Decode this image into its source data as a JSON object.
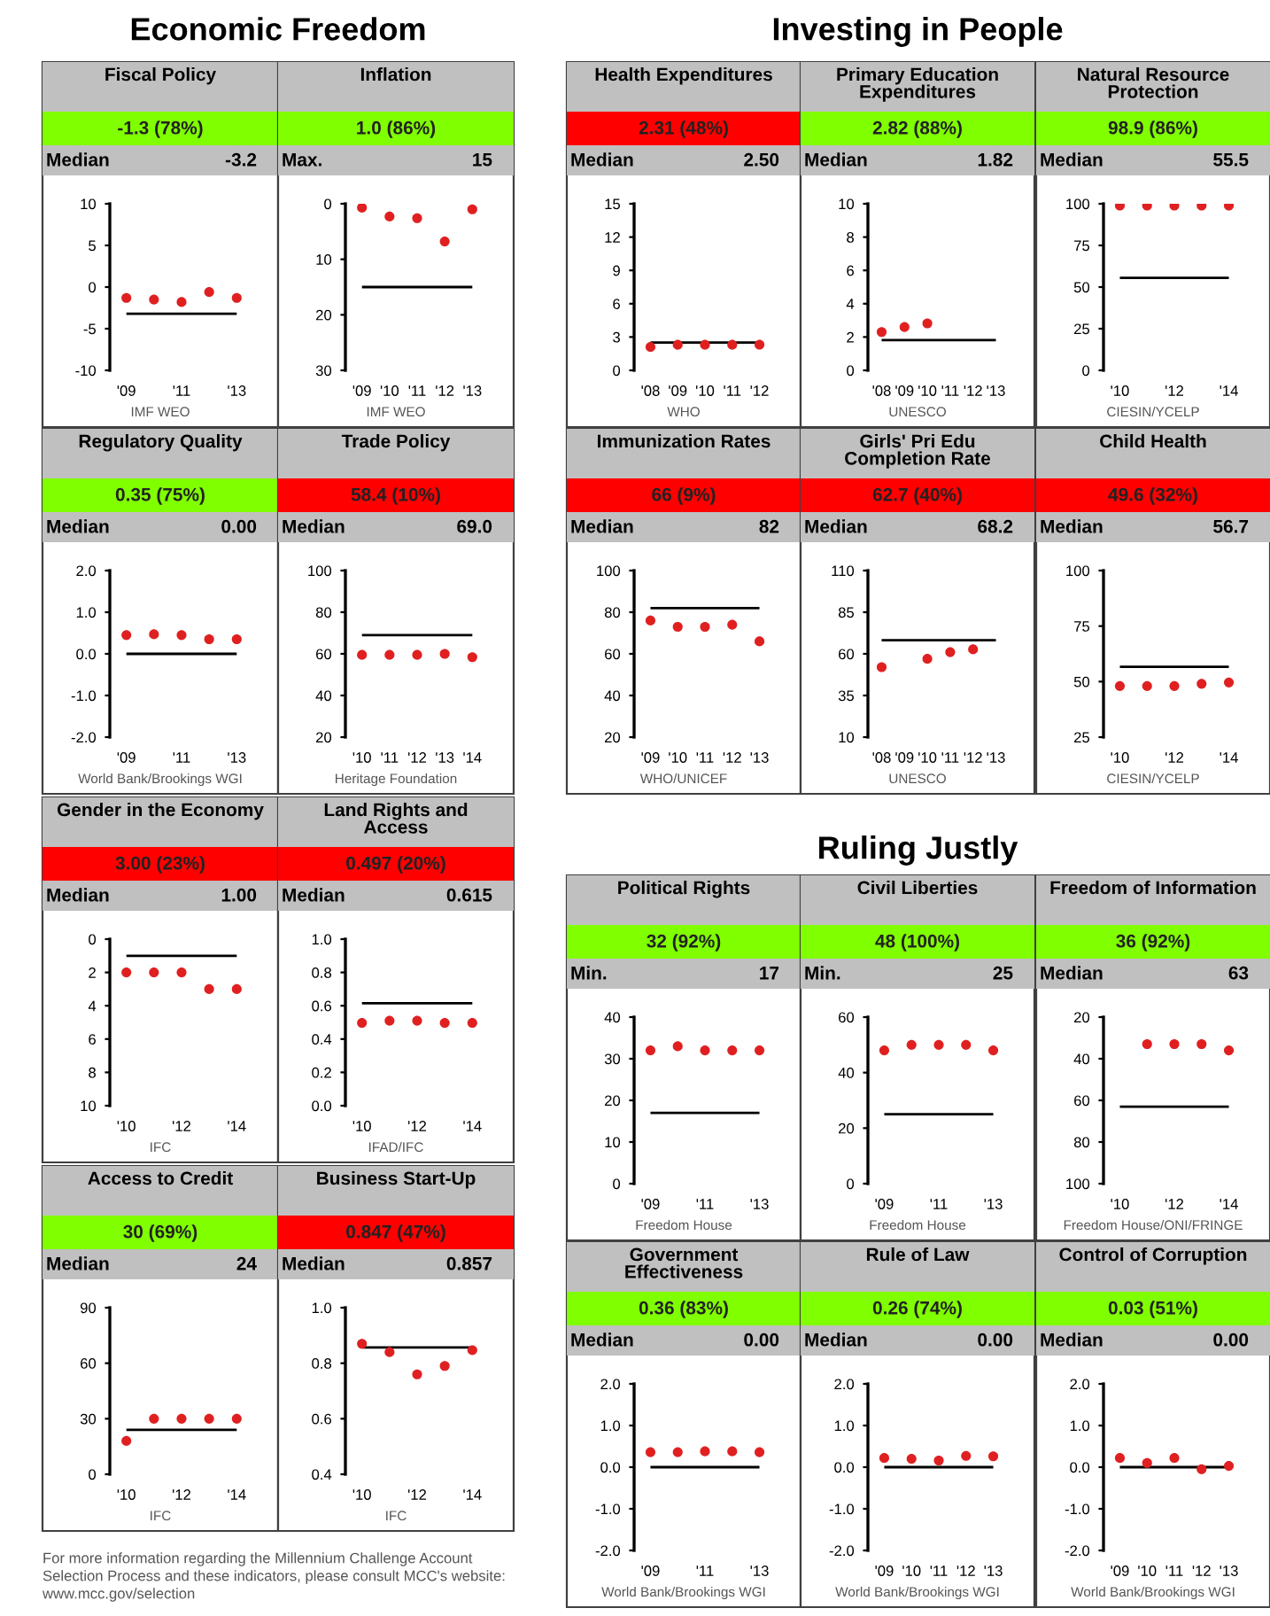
{
  "chart_data": [
    {
      "type": "other",
      "title": "Economic Freedom"
    },
    {
      "type": "scatter",
      "title": "Fiscal Policy",
      "subtitle": "-1.3 (78%)",
      "color": "#80ff00",
      "annotations": [
        "Median",
        "-3.2",
        "IMF WEO"
      ],
      "categories": [
        "'09",
        null,
        "'11",
        null,
        "'13"
      ],
      "marker": "circle",
      "series": [
        {
          "color": "#e02020",
          "values": [
            -1.3,
            -1.5,
            -1.8,
            -0.6,
            -1.3
          ]
        }
      ],
      "ylim": [
        -10,
        10
      ],
      "yticks": [
        -10,
        -5,
        0,
        5,
        10
      ],
      "ref_lines": [
        {
          "axis": "y",
          "value": -3.2,
          "color": "#000000"
        }
      ]
    },
    {
      "type": "scatter",
      "title": "Inflation",
      "subtitle": "1.0 (86%)",
      "color": "#80ff00",
      "annotations": [
        "Max.",
        "15",
        "IMF WEO"
      ],
      "categories": [
        "'09",
        "'10",
        "'11",
        "'12",
        "'13"
      ],
      "marker": "circle",
      "series": [
        {
          "color": "#e02020",
          "values": [
            0.7,
            2.3,
            2.6,
            6.8,
            1.0
          ]
        }
      ],
      "ylim": [
        30,
        0
      ],
      "yticks": [
        0,
        10,
        20,
        30
      ],
      "ref_lines": [
        {
          "axis": "y",
          "value": 15,
          "color": "#000000"
        }
      ]
    },
    {
      "type": "scatter",
      "title": "Regulatory Quality",
      "subtitle": "0.35 (75%)",
      "color": "#80ff00",
      "annotations": [
        "Median",
        "0.00",
        "World Bank/Brookings WGI"
      ],
      "categories": [
        "'09",
        null,
        "'11",
        null,
        "'13"
      ],
      "marker": "circle",
      "series": [
        {
          "color": "#e02020",
          "values": [
            0.45,
            0.47,
            0.45,
            0.35,
            0.35
          ]
        }
      ],
      "ylim": [
        -2,
        2
      ],
      "yticks": [
        {
          "value": -2,
          "label": "-2.0"
        },
        {
          "value": -1,
          "label": "-1.0"
        },
        {
          "value": 0,
          "label": "0.0"
        },
        {
          "value": 1,
          "label": "1.0"
        },
        {
          "value": 2,
          "label": "2.0"
        }
      ],
      "ref_lines": [
        {
          "axis": "y",
          "value": 0,
          "color": "#000000"
        }
      ]
    },
    {
      "type": "scatter",
      "title": "Trade Policy",
      "subtitle": "58.4 (10%)",
      "color": "#ff0000",
      "annotations": [
        "Median",
        "69.0",
        "Heritage Foundation"
      ],
      "categories": [
        "'10",
        "'11",
        "'12",
        "'13",
        "'14"
      ],
      "marker": "circle",
      "series": [
        {
          "color": "#e02020",
          "values": [
            59.5,
            59.5,
            59.5,
            60,
            58.4
          ]
        }
      ],
      "ylim": [
        20,
        100
      ],
      "yticks": [
        20,
        40,
        60,
        80,
        100
      ],
      "ref_lines": [
        {
          "axis": "y",
          "value": 69,
          "color": "#000000"
        }
      ]
    },
    {
      "type": "scatter",
      "title": "Gender in the Economy",
      "subtitle": "3.00 (23%)",
      "color": "#ff0000",
      "annotations": [
        "Median",
        "1.00",
        "IFC"
      ],
      "categories": [
        "'10",
        null,
        "'12",
        null,
        "'14"
      ],
      "marker": "circle",
      "series": [
        {
          "color": "#e02020",
          "values": [
            2,
            2,
            2,
            3,
            3
          ]
        }
      ],
      "ylim": [
        10,
        0
      ],
      "yticks": [
        0,
        2,
        4,
        6,
        8,
        10
      ],
      "ref_lines": [
        {
          "axis": "y",
          "value": 1,
          "color": "#000000"
        }
      ]
    },
    {
      "type": "scatter",
      "title": "Land Rights and\nAccess",
      "subtitle": "0.497 (20%)",
      "color": "#ff0000",
      "annotations": [
        "Median",
        "0.615",
        "IFAD/IFC"
      ],
      "categories": [
        "'10",
        null,
        "'12",
        null,
        "'14"
      ],
      "marker": "circle",
      "series": [
        {
          "color": "#e02020",
          "values": [
            0.497,
            0.51,
            0.51,
            0.497,
            0.497
          ]
        }
      ],
      "ylim": [
        0,
        1
      ],
      "yticks": [
        {
          "value": 0,
          "label": "0.0"
        },
        0.2,
        0.4,
        0.6,
        0.8,
        {
          "value": 1,
          "label": "1.0"
        }
      ],
      "ref_lines": [
        {
          "axis": "y",
          "value": 0.615,
          "color": "#000000"
        }
      ]
    },
    {
      "type": "scatter",
      "title": "Access to Credit",
      "subtitle": "30 (69%)",
      "color": "#80ff00",
      "annotations": [
        "Median",
        "24",
        "IFC"
      ],
      "categories": [
        "'10",
        null,
        "'12",
        null,
        "'14"
      ],
      "marker": "circle",
      "series": [
        {
          "color": "#e02020",
          "values": [
            18,
            30,
            30,
            30,
            30
          ]
        }
      ],
      "ylim": [
        0,
        90
      ],
      "yticks": [
        0,
        30,
        60,
        90
      ],
      "ref_lines": [
        {
          "axis": "y",
          "value": 24,
          "color": "#000000"
        }
      ]
    },
    {
      "type": "scatter",
      "title": "Business Start-Up",
      "subtitle": "0.847 (47%)",
      "color": "#ff0000",
      "annotations": [
        "Median",
        "0.857",
        "IFC"
      ],
      "categories": [
        "'10",
        null,
        "'12",
        null,
        "'14"
      ],
      "marker": "circle",
      "series": [
        {
          "color": "#e02020",
          "values": [
            0.87,
            0.84,
            0.76,
            0.79,
            0.847
          ]
        }
      ],
      "ylim": [
        0.4,
        1
      ],
      "yticks": [
        0.4,
        0.6,
        0.8,
        {
          "value": 1,
          "label": "1.0"
        }
      ],
      "ref_lines": [
        {
          "axis": "y",
          "value": 0.857,
          "color": "#000000"
        }
      ]
    },
    {
      "type": "other",
      "title": "Investing in People"
    },
    {
      "type": "scatter",
      "title": "Health Expenditures",
      "subtitle": "2.31 (48%)",
      "color": "#ff0000",
      "annotations": [
        "Median",
        "2.50",
        "WHO"
      ],
      "categories": [
        "'08",
        "'09",
        "'10",
        "'11",
        "'12"
      ],
      "marker": "circle",
      "series": [
        {
          "color": "#e02020",
          "values": [
            2.1,
            2.3,
            2.3,
            2.3,
            2.31
          ]
        }
      ],
      "ylim": [
        0,
        15
      ],
      "yticks": [
        0,
        3,
        6,
        9,
        12,
        15
      ],
      "ref_lines": [
        {
          "axis": "y",
          "value": 2.5,
          "color": "#000000"
        }
      ]
    },
    {
      "type": "scatter",
      "title": "Primary Education\nExpenditures",
      "subtitle": "2.82 (88%)",
      "color": "#80ff00",
      "annotations": [
        "Median",
        "1.82",
        "UNESCO"
      ],
      "categories": [
        "'08",
        "'09",
        "'10",
        "'11",
        "'12",
        "'13"
      ],
      "marker": "circle",
      "series": [
        {
          "color": "#e02020",
          "values": [
            2.3,
            2.6,
            2.82,
            null,
            null,
            null
          ]
        }
      ],
      "ylim": [
        0,
        10
      ],
      "yticks": [
        0,
        2,
        4,
        6,
        8,
        10
      ],
      "ref_lines": [
        {
          "axis": "y",
          "value": 1.82,
          "color": "#000000"
        }
      ]
    },
    {
      "type": "scatter",
      "title": "Natural Resource\nProtection",
      "subtitle": "98.9 (86%)",
      "color": "#80ff00",
      "annotations": [
        "Median",
        "55.5",
        "CIESIN/YCELP"
      ],
      "categories": [
        "'10",
        null,
        "'12",
        null,
        "'14"
      ],
      "marker": "circle",
      "series": [
        {
          "color": "#e02020",
          "values": [
            98.9,
            98.9,
            98.9,
            98.9,
            98.9
          ]
        }
      ],
      "ylim": [
        0,
        100
      ],
      "yticks": [
        0,
        25,
        50,
        75,
        100
      ],
      "ref_lines": [
        {
          "axis": "y",
          "value": 55.5,
          "color": "#000000"
        }
      ]
    },
    {
      "type": "scatter",
      "title": "Immunization Rates",
      "subtitle": "66 (9%)",
      "color": "#ff0000",
      "annotations": [
        "Median",
        "82",
        "WHO/UNICEF"
      ],
      "categories": [
        "'09",
        "'10",
        "'11",
        "'12",
        "'13"
      ],
      "marker": "circle",
      "series": [
        {
          "color": "#e02020",
          "values": [
            76,
            73,
            73,
            74,
            66
          ]
        }
      ],
      "ylim": [
        20,
        100
      ],
      "yticks": [
        20,
        40,
        60,
        80,
        100
      ],
      "ref_lines": [
        {
          "axis": "y",
          "value": 82,
          "color": "#000000"
        }
      ]
    },
    {
      "type": "scatter",
      "title": "Girls' Pri Edu\nCompletion Rate",
      "subtitle": "62.7 (40%)",
      "color": "#ff0000",
      "annotations": [
        "Median",
        "68.2",
        "UNESCO"
      ],
      "categories": [
        "'08",
        "'09",
        "'10",
        "'11",
        "'12",
        "'13"
      ],
      "marker": "circle",
      "series": [
        {
          "color": "#e02020",
          "values": [
            52,
            null,
            57,
            61,
            62.7,
            null
          ]
        }
      ],
      "ylim": [
        10,
        110
      ],
      "yticks": [
        10,
        35,
        60,
        85,
        110
      ],
      "ref_lines": [
        {
          "axis": "y",
          "value": 68.2,
          "color": "#000000"
        }
      ]
    },
    {
      "type": "scatter",
      "title": "Child Health",
      "subtitle": "49.6 (32%)",
      "color": "#ff0000",
      "annotations": [
        "Median",
        "56.7",
        "CIESIN/YCELP"
      ],
      "categories": [
        "'10",
        null,
        "'12",
        null,
        "'14"
      ],
      "marker": "circle",
      "series": [
        {
          "color": "#e02020",
          "values": [
            48,
            48,
            48,
            49,
            49.6
          ]
        }
      ],
      "ylim": [
        25,
        100
      ],
      "yticks": [
        25,
        50,
        75,
        100
      ],
      "ref_lines": [
        {
          "axis": "y",
          "value": 56.7,
          "color": "#000000"
        }
      ]
    },
    {
      "type": "other",
      "title": "Ruling Justly"
    },
    {
      "type": "scatter",
      "title": "Political Rights",
      "subtitle": "32 (92%)",
      "color": "#80ff00",
      "annotations": [
        "Min.",
        "17",
        "Freedom House"
      ],
      "categories": [
        "'09",
        null,
        "'11",
        null,
        "'13"
      ],
      "marker": "circle",
      "series": [
        {
          "color": "#e02020",
          "values": [
            32,
            33,
            32,
            32,
            32
          ]
        }
      ],
      "ylim": [
        0,
        40
      ],
      "yticks": [
        0,
        10,
        20,
        30,
        40
      ],
      "ref_lines": [
        {
          "axis": "y",
          "value": 17,
          "color": "#000000"
        }
      ]
    },
    {
      "type": "scatter",
      "title": "Civil Liberties",
      "subtitle": "48 (100%)",
      "color": "#80ff00",
      "annotations": [
        "Min.",
        "25",
        "Freedom House"
      ],
      "categories": [
        "'09",
        null,
        "'11",
        null,
        "'13"
      ],
      "marker": "circle",
      "series": [
        {
          "color": "#e02020",
          "values": [
            48,
            50,
            50,
            50,
            48
          ]
        }
      ],
      "ylim": [
        0,
        60
      ],
      "yticks": [
        0,
        20,
        40,
        60
      ],
      "ref_lines": [
        {
          "axis": "y",
          "value": 25,
          "color": "#000000"
        }
      ]
    },
    {
      "type": "scatter",
      "title": "Freedom of Information",
      "subtitle": "36 (92%)",
      "color": "#80ff00",
      "annotations": [
        "Median",
        "63",
        "Freedom House/ONI/FRINGE"
      ],
      "categories": [
        "'10",
        null,
        "'12",
        null,
        "'14"
      ],
      "marker": "circle",
      "series": [
        {
          "color": "#e02020",
          "values": [
            null,
            33,
            33,
            33,
            36
          ]
        }
      ],
      "ylim": [
        100,
        20
      ],
      "yticks": [
        20,
        40,
        60,
        80,
        100
      ],
      "ref_lines": [
        {
          "axis": "y",
          "value": 63,
          "color": "#000000"
        }
      ]
    },
    {
      "type": "scatter",
      "title": "Government\nEffectiveness",
      "subtitle": "0.36 (83%)",
      "color": "#80ff00",
      "annotations": [
        "Median",
        "0.00",
        "World Bank/Brookings WGI"
      ],
      "categories": [
        "'09",
        null,
        "'11",
        null,
        "'13"
      ],
      "marker": "circle",
      "series": [
        {
          "color": "#e02020",
          "values": [
            0.36,
            0.36,
            0.38,
            0.38,
            0.36
          ]
        }
      ],
      "ylim": [
        -2,
        2
      ],
      "yticks": [
        {
          "value": -2,
          "label": "-2.0"
        },
        {
          "value": -1,
          "label": "-1.0"
        },
        {
          "value": 0,
          "label": "0.0"
        },
        {
          "value": 1,
          "label": "1.0"
        },
        {
          "value": 2,
          "label": "2.0"
        }
      ],
      "ref_lines": [
        {
          "axis": "y",
          "value": 0,
          "color": "#000000"
        }
      ]
    },
    {
      "type": "scatter",
      "title": "Rule of Law",
      "subtitle": "0.26 (74%)",
      "color": "#80ff00",
      "annotations": [
        "Median",
        "0.00",
        "World Bank/Brookings WGI"
      ],
      "categories": [
        "'09",
        "'10",
        "'11",
        "'12",
        "'13"
      ],
      "marker": "circle",
      "series": [
        {
          "color": "#e02020",
          "values": [
            0.22,
            0.2,
            0.16,
            0.27,
            0.26
          ]
        }
      ],
      "ylim": [
        -2,
        2
      ],
      "yticks": [
        {
          "value": -2,
          "label": "-2.0"
        },
        {
          "value": -1,
          "label": "-1.0"
        },
        {
          "value": 0,
          "label": "0.0"
        },
        {
          "value": 1,
          "label": "1.0"
        },
        {
          "value": 2,
          "label": "2.0"
        }
      ],
      "ref_lines": [
        {
          "axis": "y",
          "value": 0,
          "color": "#000000"
        }
      ]
    },
    {
      "type": "scatter",
      "title": "Control of Corruption",
      "subtitle": "0.03 (51%)",
      "color": "#80ff00",
      "annotations": [
        "Median",
        "0.00",
        "World Bank/Brookings WGI"
      ],
      "categories": [
        "'09",
        "'10",
        "'11",
        "'12",
        "'13"
      ],
      "marker": "circle",
      "series": [
        {
          "color": "#e02020",
          "values": [
            0.22,
            0.1,
            0.22,
            -0.05,
            0.03
          ]
        }
      ],
      "ylim": [
        -2,
        2
      ],
      "yticks": [
        {
          "value": -2,
          "label": "-2.0"
        },
        {
          "value": -1,
          "label": "-1.0"
        },
        {
          "value": 0,
          "label": "0.0"
        },
        {
          "value": 1,
          "label": "1.0"
        },
        {
          "value": 2,
          "label": "2.0"
        }
      ],
      "ref_lines": [
        {
          "axis": "y",
          "value": 0,
          "color": "#000000"
        }
      ]
    },
    {
      "type": "other",
      "annotations": [
        "For more information regarding the Millennium Challenge Account",
        "Selection Process and these indicators, please consult MCC's website:",
        "www.mcc.gov/selection"
      ]
    }
  ]
}
